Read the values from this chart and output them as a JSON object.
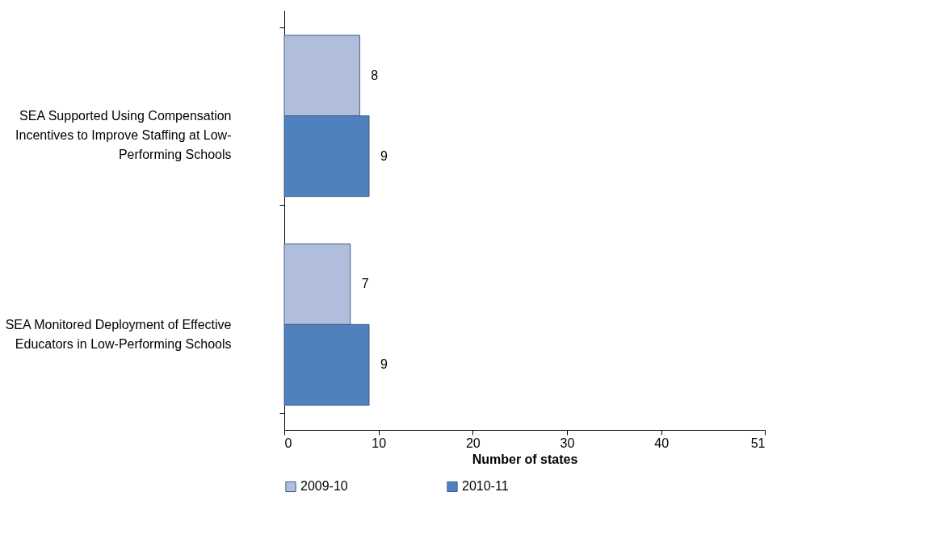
{
  "chart_data": {
    "type": "bar",
    "orientation": "horizontal",
    "xlabel": "Number of states",
    "categories": [
      "SEA Supported Using Compensation Incentives to Improve Staffing at Low-Performing Schools",
      "SEA Monitored Deployment of Effective Educators in Low-Performing Schools"
    ],
    "series": [
      {
        "name": "2009-10",
        "color": "#b0bedb",
        "values": [
          8,
          7
        ]
      },
      {
        "name": "2010-11",
        "color": "#4f81bd",
        "values": [
          9,
          9
        ]
      }
    ],
    "xlim": [
      0,
      51
    ],
    "xticks": [
      0,
      10,
      20,
      30,
      40,
      51
    ],
    "grid": false,
    "legend": "bottom",
    "data_labels": true
  }
}
